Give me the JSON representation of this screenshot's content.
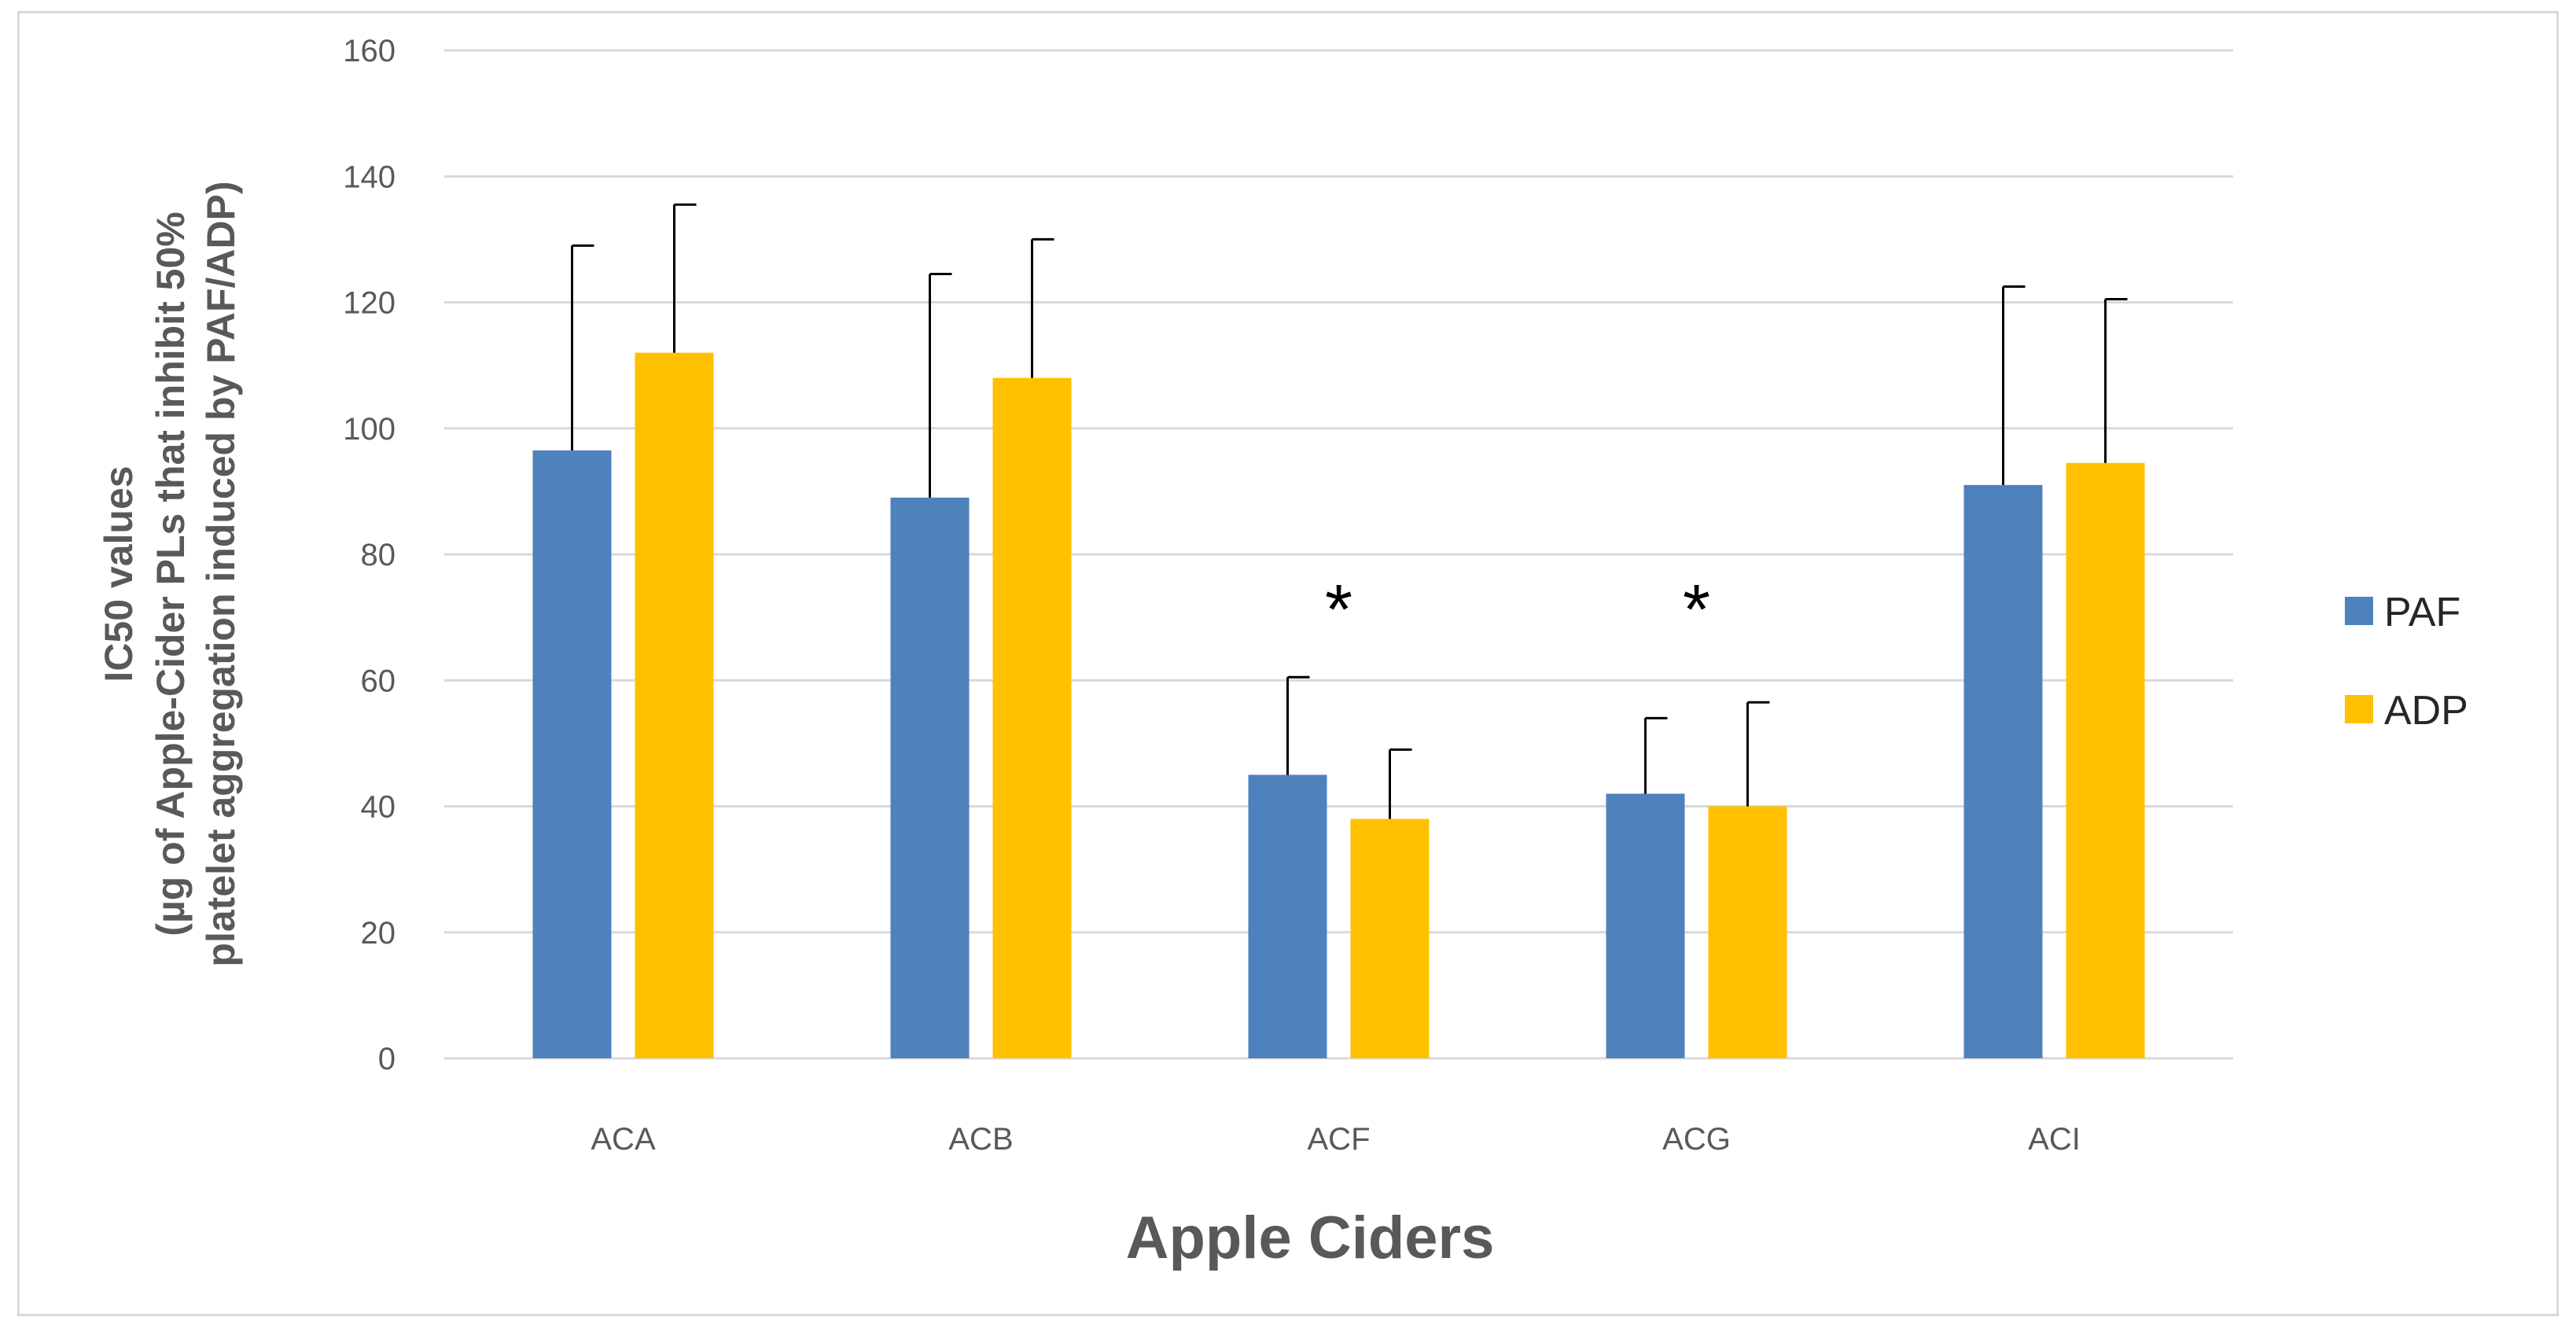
{
  "chart_data": {
    "type": "bar",
    "title": "",
    "xlabel": "Apple Ciders",
    "ylabel": [
      "IC50 values",
      "(µg of Apple-Cider PLs that inhibit 50%",
      "platelet aggregation induced by PAF/ADP)"
    ],
    "categories": [
      "ACA",
      "ACB",
      "ACF",
      "ACG",
      "ACI"
    ],
    "ylim": [
      0,
      160
    ],
    "yticks": [
      0,
      20,
      40,
      60,
      80,
      100,
      120,
      140,
      160
    ],
    "grid": true,
    "legend_position": "right",
    "series": [
      {
        "name": "PAF",
        "color": "#4f81bd",
        "values": [
          96.5,
          89,
          45,
          42,
          91
        ],
        "errors": [
          32.5,
          35.5,
          15.5,
          12,
          31.5
        ]
      },
      {
        "name": "ADP",
        "color": "#ffc000",
        "values": [
          112,
          108,
          38,
          40,
          94.5
        ],
        "errors": [
          23.5,
          22,
          11,
          16.5,
          26
        ]
      }
    ],
    "annotations": [
      {
        "category": "ACF",
        "text": "*"
      },
      {
        "category": "ACG",
        "text": "*"
      }
    ]
  }
}
